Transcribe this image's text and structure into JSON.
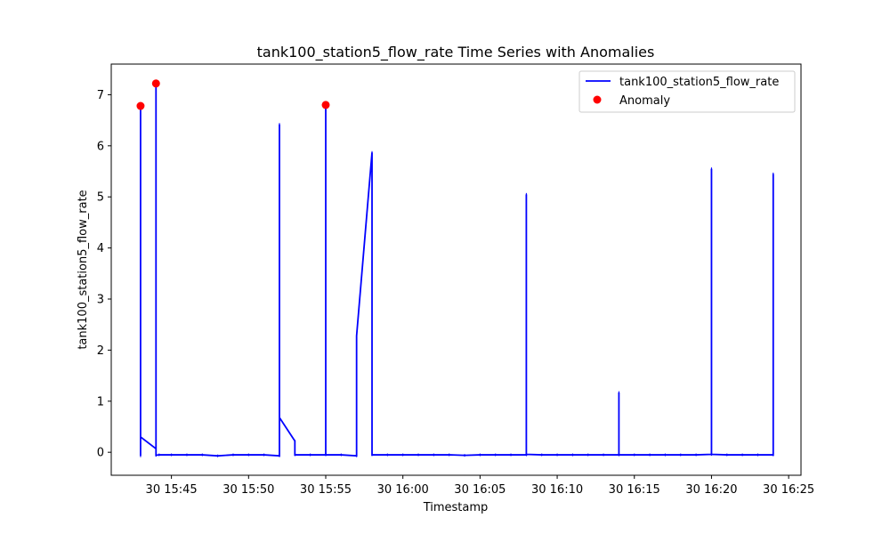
{
  "chart_data": {
    "type": "line",
    "title": "tank100_station5_flow_rate Time Series with Anomalies",
    "xlabel": "Timestamp",
    "ylabel": "tank100_station5_flow_rate",
    "x_unit": "minutes after 15:00 on day 30",
    "xlim": [
      41.1,
      85.8
    ],
    "ylim": [
      -0.45,
      7.6
    ],
    "x_ticks": [
      {
        "value": 45,
        "label": "30 15:45"
      },
      {
        "value": 50,
        "label": "30 15:50"
      },
      {
        "value": 55,
        "label": "30 15:55"
      },
      {
        "value": 60,
        "label": "30 16:00"
      },
      {
        "value": 65,
        "label": "30 16:05"
      },
      {
        "value": 70,
        "label": "30 16:10"
      },
      {
        "value": 75,
        "label": "30 16:15"
      },
      {
        "value": 80,
        "label": "30 16:20"
      },
      {
        "value": 85,
        "label": "30 16:25"
      }
    ],
    "y_ticks": [
      {
        "value": 0,
        "label": "0"
      },
      {
        "value": 1,
        "label": "1"
      },
      {
        "value": 2,
        "label": "2"
      },
      {
        "value": 3,
        "label": "3"
      },
      {
        "value": 4,
        "label": "4"
      },
      {
        "value": 5,
        "label": "5"
      },
      {
        "value": 6,
        "label": "6"
      },
      {
        "value": 7,
        "label": "7"
      }
    ],
    "grid": false,
    "legend_position": "top-right",
    "series": [
      {
        "name": "tank100_station5_flow_rate",
        "kind": "line",
        "color": "#0000ff",
        "points": [
          [
            43.0,
            6.78
          ],
          [
            43.0,
            -0.07
          ],
          [
            43.0,
            0.3
          ],
          [
            44.0,
            0.07
          ],
          [
            44.0,
            7.22
          ],
          [
            44.0,
            -0.06
          ],
          [
            44.2,
            -0.05
          ],
          [
            45.0,
            -0.05
          ],
          [
            46.0,
            -0.05
          ],
          [
            47.0,
            -0.05
          ],
          [
            48.0,
            -0.07
          ],
          [
            49.0,
            -0.05
          ],
          [
            50.0,
            -0.05
          ],
          [
            51.0,
            -0.05
          ],
          [
            52.0,
            -0.07
          ],
          [
            52.0,
            6.42
          ],
          [
            52.0,
            0.68
          ],
          [
            53.0,
            0.22
          ],
          [
            53.0,
            -0.05
          ],
          [
            54.0,
            -0.05
          ],
          [
            55.0,
            -0.05
          ],
          [
            55.0,
            6.8
          ],
          [
            55.0,
            -0.05
          ],
          [
            56.0,
            -0.05
          ],
          [
            57.0,
            -0.07
          ],
          [
            57.0,
            2.28
          ],
          [
            58.0,
            5.87
          ],
          [
            58.0,
            -0.05
          ],
          [
            59.0,
            -0.05
          ],
          [
            60.0,
            -0.05
          ],
          [
            61.0,
            -0.05
          ],
          [
            62.0,
            -0.05
          ],
          [
            63.0,
            -0.05
          ],
          [
            64.0,
            -0.06
          ],
          [
            65.0,
            -0.05
          ],
          [
            66.0,
            -0.05
          ],
          [
            67.0,
            -0.05
          ],
          [
            68.0,
            -0.05
          ],
          [
            68.0,
            5.05
          ],
          [
            68.0,
            -0.04
          ],
          [
            69.0,
            -0.05
          ],
          [
            70.0,
            -0.05
          ],
          [
            71.0,
            -0.05
          ],
          [
            72.0,
            -0.05
          ],
          [
            73.0,
            -0.05
          ],
          [
            74.0,
            -0.05
          ],
          [
            74.0,
            1.17
          ],
          [
            74.0,
            -0.05
          ],
          [
            75.0,
            -0.05
          ],
          [
            76.0,
            -0.05
          ],
          [
            77.0,
            -0.05
          ],
          [
            78.0,
            -0.05
          ],
          [
            79.0,
            -0.05
          ],
          [
            80.0,
            -0.04
          ],
          [
            80.0,
            5.55
          ],
          [
            80.0,
            -0.04
          ],
          [
            81.0,
            -0.05
          ],
          [
            82.0,
            -0.05
          ],
          [
            83.0,
            -0.05
          ],
          [
            84.0,
            -0.05
          ],
          [
            84.0,
            5.45
          ],
          [
            84.0,
            -0.05
          ]
        ]
      },
      {
        "name": "Anomaly",
        "kind": "scatter",
        "color": "#ff0000",
        "points": [
          [
            43.0,
            6.78
          ],
          [
            44.0,
            7.22
          ],
          [
            55.0,
            6.8
          ]
        ]
      }
    ]
  }
}
